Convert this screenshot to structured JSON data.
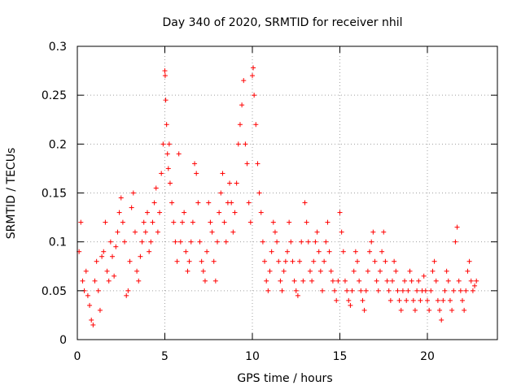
{
  "chart_data": {
    "type": "scatter",
    "title": "Day 340 of 2020, SRMTID for receiver nhil",
    "xlabel": "GPS time / hours",
    "ylabel": "SRMTID / TECUs",
    "xlim": [
      0,
      24
    ],
    "ylim": [
      0,
      0.3
    ],
    "xticks": [
      0,
      5,
      10,
      15,
      20
    ],
    "xtick_labels": [
      "0",
      "5",
      "10",
      "15",
      "20"
    ],
    "yticks": [
      0,
      0.05,
      0.1,
      0.15,
      0.2,
      0.25,
      0.3
    ],
    "ytick_labels": [
      "0",
      "0.05",
      "0.1",
      "0.15",
      "0.2",
      "0.25",
      "0.3"
    ],
    "grid": true,
    "marker": "+",
    "marker_color": "#ff0000",
    "series": [
      {
        "name": "SRMTID",
        "x": [
          0.1,
          0.2,
          0.3,
          0.4,
          0.5,
          0.6,
          0.7,
          0.8,
          0.9,
          1.0,
          1.1,
          1.2,
          1.3,
          1.4,
          1.5,
          1.6,
          1.7,
          1.8,
          1.9,
          2.0,
          2.1,
          2.2,
          2.3,
          2.4,
          2.5,
          2.6,
          2.7,
          2.8,
          2.9,
          3.0,
          3.1,
          3.2,
          3.3,
          3.4,
          3.5,
          3.6,
          3.7,
          3.8,
          3.9,
          4.0,
          4.1,
          4.2,
          4.3,
          4.4,
          4.5,
          4.6,
          4.7,
          4.8,
          4.9,
          5.0,
          5.02,
          5.05,
          5.1,
          5.15,
          5.2,
          5.25,
          5.3,
          5.4,
          5.5,
          5.6,
          5.7,
          5.8,
          5.9,
          6.0,
          6.1,
          6.2,
          6.3,
          6.4,
          6.5,
          6.6,
          6.7,
          6.8,
          6.9,
          7.0,
          7.1,
          7.2,
          7.3,
          7.4,
          7.5,
          7.6,
          7.7,
          7.8,
          7.9,
          8.0,
          8.1,
          8.2,
          8.3,
          8.4,
          8.5,
          8.6,
          8.7,
          8.8,
          8.9,
          9.0,
          9.1,
          9.2,
          9.3,
          9.4,
          9.5,
          9.6,
          9.7,
          9.8,
          9.9,
          10.0,
          10.05,
          10.1,
          10.2,
          10.3,
          10.4,
          10.5,
          10.6,
          10.7,
          10.8,
          10.9,
          11.0,
          11.1,
          11.2,
          11.3,
          11.4,
          11.5,
          11.6,
          11.7,
          11.8,
          11.9,
          12.0,
          12.1,
          12.2,
          12.3,
          12.4,
          12.5,
          12.6,
          12.7,
          12.8,
          12.9,
          13.0,
          13.1,
          13.2,
          13.3,
          13.4,
          13.5,
          13.6,
          13.7,
          13.8,
          13.9,
          14.0,
          14.1,
          14.2,
          14.3,
          14.4,
          14.5,
          14.6,
          14.7,
          14.8,
          14.9,
          15.0,
          15.1,
          15.2,
          15.3,
          15.4,
          15.5,
          15.6,
          15.7,
          15.8,
          15.9,
          16.0,
          16.1,
          16.2,
          16.3,
          16.4,
          16.5,
          16.6,
          16.7,
          16.8,
          16.9,
          17.0,
          17.1,
          17.2,
          17.3,
          17.4,
          17.5,
          17.6,
          17.7,
          17.8,
          17.9,
          18.0,
          18.1,
          18.2,
          18.3,
          18.4,
          18.5,
          18.6,
          18.7,
          18.8,
          18.9,
          19.0,
          19.1,
          19.2,
          19.3,
          19.4,
          19.5,
          19.6,
          19.7,
          19.8,
          19.9,
          20.0,
          20.1,
          20.2,
          20.3,
          20.4,
          20.5,
          20.6,
          20.7,
          20.8,
          20.9,
          21.0,
          21.1,
          21.2,
          21.3,
          21.4,
          21.5,
          21.6,
          21.7,
          21.8,
          21.9,
          22.0,
          22.1,
          22.2,
          22.3,
          22.4,
          22.5,
          22.6,
          22.7,
          22.8
        ],
        "y": [
          0.09,
          0.12,
          0.06,
          0.05,
          0.07,
          0.045,
          0.035,
          0.02,
          0.015,
          0.06,
          0.08,
          0.05,
          0.03,
          0.085,
          0.09,
          0.12,
          0.07,
          0.06,
          0.1,
          0.085,
          0.065,
          0.095,
          0.11,
          0.13,
          0.145,
          0.12,
          0.1,
          0.045,
          0.05,
          0.08,
          0.135,
          0.15,
          0.11,
          0.07,
          0.06,
          0.085,
          0.1,
          0.12,
          0.11,
          0.13,
          0.09,
          0.1,
          0.12,
          0.14,
          0.155,
          0.11,
          0.13,
          0.17,
          0.2,
          0.275,
          0.27,
          0.245,
          0.22,
          0.19,
          0.175,
          0.2,
          0.16,
          0.14,
          0.12,
          0.1,
          0.08,
          0.19,
          0.1,
          0.12,
          0.13,
          0.09,
          0.07,
          0.08,
          0.1,
          0.12,
          0.18,
          0.17,
          0.14,
          0.1,
          0.08,
          0.07,
          0.06,
          0.09,
          0.14,
          0.12,
          0.11,
          0.08,
          0.06,
          0.1,
          0.13,
          0.15,
          0.17,
          0.12,
          0.1,
          0.14,
          0.16,
          0.14,
          0.11,
          0.13,
          0.16,
          0.2,
          0.22,
          0.24,
          0.265,
          0.2,
          0.18,
          0.14,
          0.12,
          0.27,
          0.278,
          0.25,
          0.22,
          0.18,
          0.15,
          0.13,
          0.1,
          0.08,
          0.06,
          0.05,
          0.07,
          0.09,
          0.12,
          0.11,
          0.1,
          0.08,
          0.06,
          0.05,
          0.07,
          0.08,
          0.09,
          0.12,
          0.1,
          0.08,
          0.06,
          0.05,
          0.045,
          0.08,
          0.1,
          0.06,
          0.14,
          0.12,
          0.1,
          0.07,
          0.06,
          0.08,
          0.1,
          0.11,
          0.09,
          0.07,
          0.05,
          0.08,
          0.1,
          0.12,
          0.09,
          0.07,
          0.06,
          0.05,
          0.04,
          0.06,
          0.13,
          0.11,
          0.09,
          0.06,
          0.05,
          0.04,
          0.035,
          0.05,
          0.07,
          0.09,
          0.08,
          0.06,
          0.05,
          0.04,
          0.03,
          0.05,
          0.07,
          0.09,
          0.1,
          0.11,
          0.08,
          0.06,
          0.05,
          0.07,
          0.09,
          0.11,
          0.08,
          0.06,
          0.05,
          0.04,
          0.06,
          0.08,
          0.07,
          0.05,
          0.04,
          0.03,
          0.05,
          0.06,
          0.04,
          0.05,
          0.07,
          0.06,
          0.04,
          0.03,
          0.05,
          0.06,
          0.04,
          0.05,
          0.065,
          0.05,
          0.04,
          0.03,
          0.05,
          0.07,
          0.08,
          0.06,
          0.04,
          0.03,
          0.02,
          0.04,
          0.05,
          0.07,
          0.06,
          0.04,
          0.03,
          0.05,
          0.1,
          0.115,
          0.06,
          0.05,
          0.04,
          0.03,
          0.05,
          0.07,
          0.08,
          0.06,
          0.05,
          0.055,
          0.06
        ]
      }
    ]
  }
}
